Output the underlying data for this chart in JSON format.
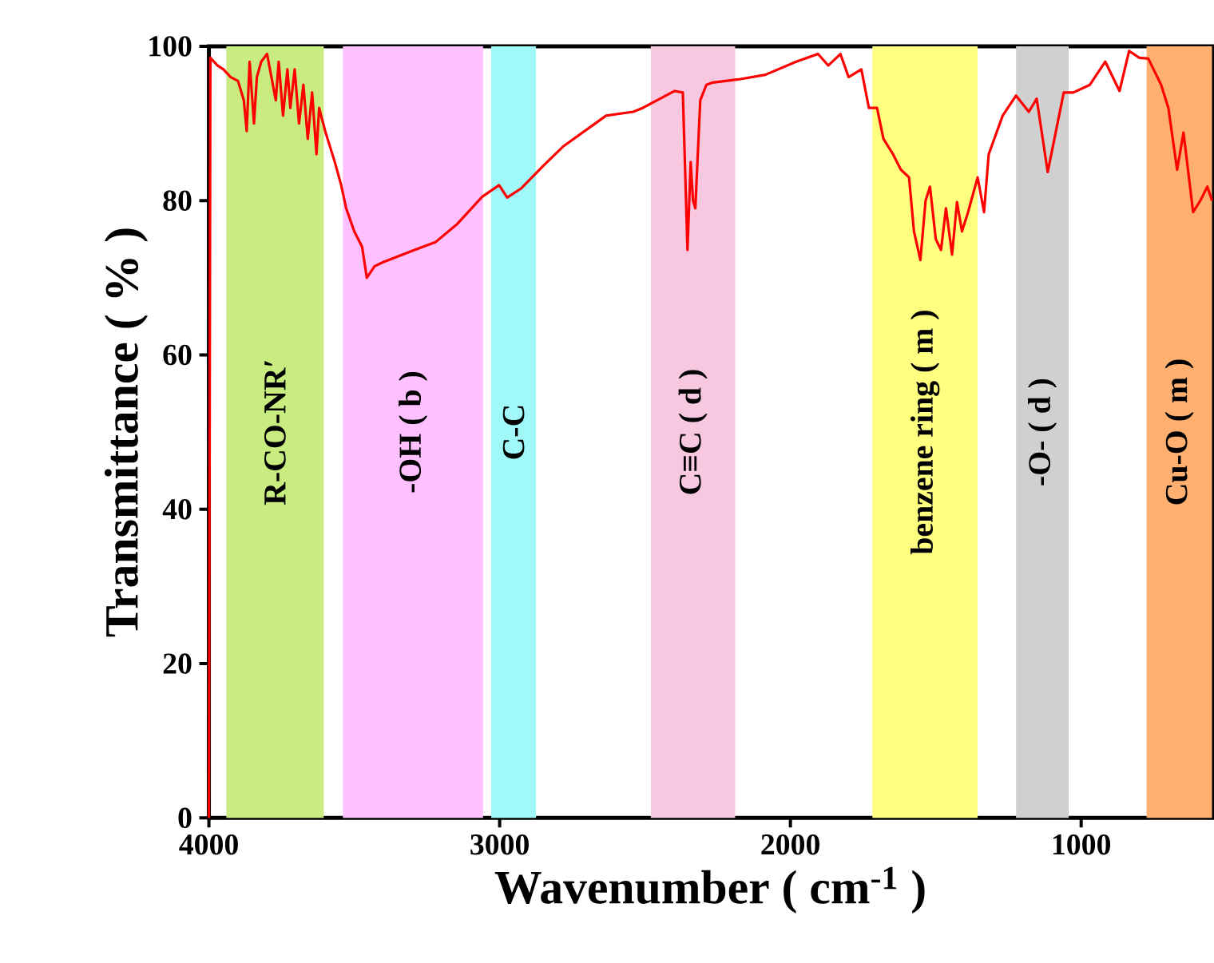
{
  "chart_data": {
    "type": "line",
    "xlabel": "Wavenumber ( cm$^{-1}$ )",
    "ylabel": "Transmittance ( % )",
    "xlim": [
      4000,
      550
    ],
    "ylim": [
      0,
      100
    ],
    "xticks": [
      4000,
      3000,
      2000,
      1000
    ],
    "yticks": [
      0,
      20,
      40,
      60,
      80,
      100
    ],
    "grid": false,
    "marker": "none",
    "line_style": "solid",
    "series": [
      {
        "color": "#ff0000",
        "x": [
          4000,
          3995,
          3970,
          3950,
          3925,
          3900,
          3880,
          3870,
          3860,
          3845,
          3835,
          3820,
          3800,
          3790,
          3770,
          3760,
          3745,
          3730,
          3720,
          3705,
          3690,
          3675,
          3660,
          3645,
          3630,
          3621,
          3600,
          3567,
          3545,
          3528,
          3500,
          3473,
          3457,
          3430,
          3402,
          3300,
          3221,
          3145,
          3060,
          3002,
          2974,
          2925,
          2850,
          2782,
          2634,
          2541,
          2508,
          2398,
          2370,
          2354,
          2343,
          2335,
          2327,
          2310,
          2289,
          2267,
          2179,
          2086,
          1980,
          1905,
          1870,
          1828,
          1800,
          1756,
          1730,
          1702,
          1680,
          1647,
          1620,
          1592,
          1575,
          1553,
          1535,
          1520,
          1500,
          1482,
          1465,
          1444,
          1427,
          1410,
          1389,
          1356,
          1334,
          1318,
          1270,
          1224,
          1180,
          1153,
          1115,
          1060,
          1027,
          970,
          917,
          868,
          835,
          800,
          769,
          725,
          700,
          670,
          648,
          615,
          590,
          566,
          550
        ],
        "values": [
          0,
          98.5,
          97.5,
          97,
          96,
          95.5,
          93,
          89,
          98,
          90,
          96,
          98,
          99,
          97,
          93,
          98,
          91,
          97,
          92,
          97,
          90,
          95,
          88,
          94,
          86,
          92,
          89,
          85,
          82,
          79,
          76,
          74,
          70,
          71.5,
          72,
          73.5,
          74.6,
          77,
          80.5,
          82,
          80.4,
          81.6,
          84.5,
          87,
          91,
          91.5,
          92,
          94.2,
          94,
          73.6,
          85,
          80,
          79,
          93,
          95,
          95.3,
          95.7,
          96.3,
          98,
          99,
          97.5,
          99,
          96,
          97,
          92,
          92,
          88,
          86,
          84,
          83,
          76,
          72.3,
          80,
          81.8,
          75,
          73.6,
          79,
          73,
          79.8,
          76,
          78.5,
          83,
          78.5,
          86,
          91,
          93.6,
          91.5,
          93.2,
          83.7,
          94,
          94,
          95,
          98,
          94.2,
          99.4,
          98.5,
          98.4,
          95,
          92,
          84,
          88.8,
          78.5,
          80,
          81.8,
          80
        ]
      }
    ],
    "bands": [
      {
        "axis": "x",
        "from": 3940,
        "to": 3605,
        "label": "R-CO-NR′",
        "color": "#c8ec80"
      },
      {
        "axis": "x",
        "from": 3539,
        "to": 3057,
        "label": "-OH ( b )",
        "color": "#ffc0ff"
      },
      {
        "axis": "x",
        "from": 3029,
        "to": 2875,
        "label": "C-C",
        "color": "#a0f8f8"
      },
      {
        "axis": "x",
        "from": 2480,
        "to": 2190,
        "label": "C≡C ( d )",
        "color": "#f8c8e0"
      },
      {
        "axis": "x",
        "from": 1718,
        "to": 1356,
        "label": "benzene ring ( m )",
        "color": "#ffff80"
      },
      {
        "axis": "x",
        "from": 1224,
        "to": 1043,
        "label": "-O- ( d )",
        "color": "#d0d0d0"
      },
      {
        "axis": "x",
        "from": 775,
        "to": 550,
        "label": "Cu-O ( m )",
        "color": "#ffb070"
      }
    ]
  }
}
